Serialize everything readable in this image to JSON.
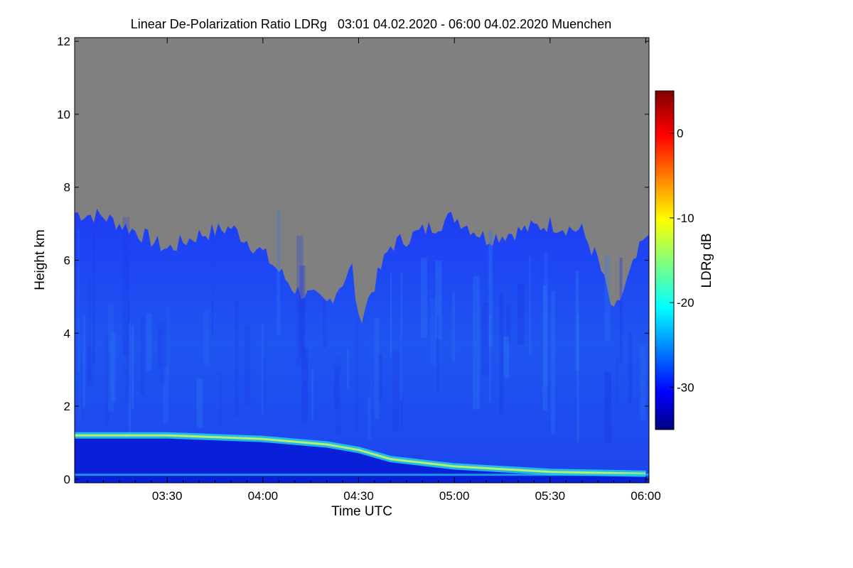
{
  "chart_data": {
    "type": "heatmap",
    "title": "Linear De-Polarization Ratio LDRg   03:01 04.02.2020 - 06:00 04.02.2020 Muenchen",
    "xlabel": "Time UTC",
    "ylabel": "Height km",
    "colorbar_label": "LDRg dB",
    "xlim": [
      "03:01",
      "06:01"
    ],
    "ylim": [
      -0.1,
      12.1
    ],
    "x_ticks": [
      "03:30",
      "04:00",
      "04:30",
      "05:00",
      "05:30",
      "06:00"
    ],
    "y_ticks": [
      "0",
      "2",
      "4",
      "6",
      "8",
      "10",
      "12"
    ],
    "colorbar_range": [
      -35,
      5
    ],
    "colorbar_ticks": [
      "0",
      "-10",
      "-20",
      "-30"
    ],
    "colormap": "jet",
    "no_data_color": "#808080",
    "features": {
      "cloud_top_km": [
        {
          "t": "03:01",
          "h": 7.3
        },
        {
          "t": "03:10",
          "h": 7.2
        },
        {
          "t": "03:20",
          "h": 6.8
        },
        {
          "t": "03:30",
          "h": 6.3
        },
        {
          "t": "03:40",
          "h": 6.7
        },
        {
          "t": "03:50",
          "h": 6.9
        },
        {
          "t": "04:00",
          "h": 6.2
        },
        {
          "t": "04:10",
          "h": 5.2
        },
        {
          "t": "04:20",
          "h": 4.8
        },
        {
          "t": "04:28",
          "h": 5.8
        },
        {
          "t": "04:30",
          "h": 4.3
        },
        {
          "t": "04:40",
          "h": 6.4
        },
        {
          "t": "04:50",
          "h": 6.8
        },
        {
          "t": "05:00",
          "h": 7.2
        },
        {
          "t": "05:10",
          "h": 6.6
        },
        {
          "t": "05:20",
          "h": 6.8
        },
        {
          "t": "05:30",
          "h": 7.0
        },
        {
          "t": "05:40",
          "h": 6.8
        },
        {
          "t": "05:45",
          "h": 6.0
        },
        {
          "t": "05:50",
          "h": 4.5
        },
        {
          "t": "06:00",
          "h": 6.7
        }
      ],
      "boundary_layer_top_km": [
        {
          "t": "03:01",
          "h": 1.2
        },
        {
          "t": "03:30",
          "h": 1.2
        },
        {
          "t": "04:00",
          "h": 1.1
        },
        {
          "t": "04:20",
          "h": 0.95
        },
        {
          "t": "04:30",
          "h": 0.8
        },
        {
          "t": "04:40",
          "h": 0.55
        },
        {
          "t": "05:00",
          "h": 0.35
        },
        {
          "t": "05:30",
          "h": 0.2
        },
        {
          "t": "06:00",
          "h": 0.15
        }
      ]
    }
  }
}
